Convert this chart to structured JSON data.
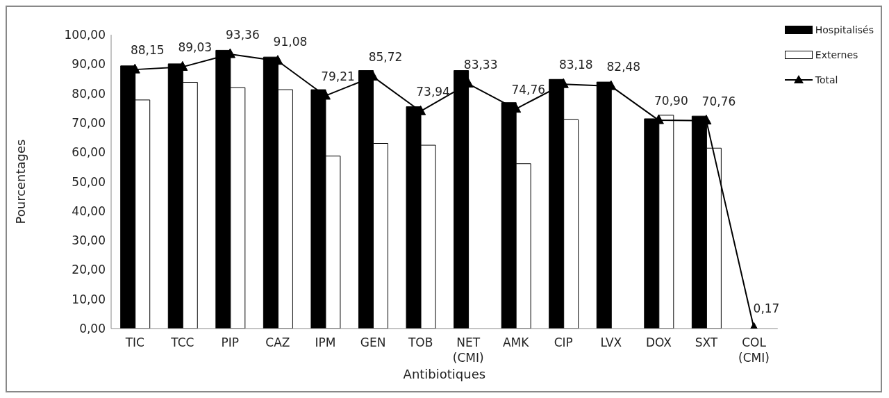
{
  "chart_data": {
    "type": "bar",
    "xlabel": "Antibiotiques",
    "ylabel": "Pourcentages",
    "categories": [
      "TIC",
      "TCC",
      "PIP",
      "CAZ",
      "IPM",
      "GEN",
      "TOB",
      "NET\n(CMI)",
      "AMK",
      "CIP",
      "LVX",
      "DOX",
      "SXT",
      "COL\n(CMI)"
    ],
    "series": [
      {
        "name": "Hospitalisés",
        "color": "#000000",
        "values": [
          89.4,
          90.1,
          94.7,
          92.4,
          81.3,
          87.8,
          75.5,
          87.8,
          76.9,
          84.8,
          83.9,
          71.4,
          72.3,
          null
        ]
      },
      {
        "name": "Externes",
        "color": "#ffffff",
        "values": [
          77.8,
          83.8,
          82.0,
          81.3,
          58.7,
          63.0,
          62.4,
          null,
          56.1,
          71.1,
          null,
          72.6,
          61.4,
          null
        ]
      },
      {
        "name": "Total",
        "type": "line",
        "color": "#000000",
        "marker": "triangle",
        "values": [
          88.15,
          89.03,
          93.36,
          91.08,
          79.21,
          85.72,
          73.94,
          83.33,
          74.76,
          83.18,
          82.48,
          70.9,
          70.76,
          0.17
        ],
        "value_labels": [
          "88,15",
          "89,03",
          "93,36",
          "91,08",
          "79,21",
          "85,72",
          "73,94",
          "83,33",
          "74,76",
          "83,18",
          "82,48",
          "70,90",
          "70,76",
          "0,17"
        ]
      }
    ],
    "ylim": [
      0,
      100
    ],
    "yticks": [
      {
        "value": 0,
        "label": "0,00"
      },
      {
        "value": 10,
        "label": "10,00"
      },
      {
        "value": 20,
        "label": "20,00"
      },
      {
        "value": 30,
        "label": "30,00"
      },
      {
        "value": 40,
        "label": "40,00"
      },
      {
        "value": 50,
        "label": "50,00"
      },
      {
        "value": 60,
        "label": "60,00"
      },
      {
        "value": 70,
        "label": "70,00"
      },
      {
        "value": 80,
        "label": "80,00"
      },
      {
        "value": 90,
        "label": "90,00"
      },
      {
        "value": 100,
        "label": "100,00"
      }
    ],
    "grid": false,
    "legend": "top right"
  }
}
